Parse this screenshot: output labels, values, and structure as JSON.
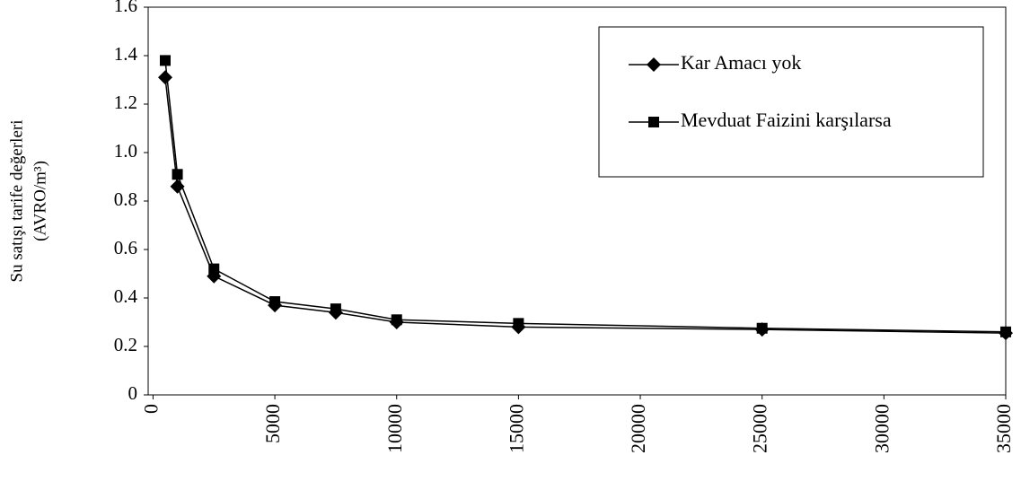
{
  "chart_data": {
    "type": "line",
    "ylabel": "Su satışı tarife değerleri",
    "ylabel_unit": "(AVRO/m³)",
    "x": [
      500,
      1000,
      2500,
      5000,
      7500,
      10000,
      15000,
      25000,
      35000
    ],
    "series": [
      {
        "name": "Kar Amacı yok",
        "color": "#000000",
        "marker": "diamond",
        "values": [
          1.31,
          0.86,
          0.49,
          0.37,
          0.34,
          0.3,
          0.28,
          0.27,
          0.255
        ]
      },
      {
        "name": "Mevduat Faizini karşılarsa",
        "color": "#000000",
        "marker": "square",
        "values": [
          1.38,
          0.91,
          0.52,
          0.385,
          0.355,
          0.31,
          0.295,
          0.275,
          0.26
        ]
      }
    ],
    "xlim": [
      -200,
      35000
    ],
    "xticks": [
      0,
      5000,
      10000,
      15000,
      20000,
      25000,
      30000,
      35000
    ],
    "ylim": [
      0,
      1.6
    ],
    "yticks": [
      0,
      0.2,
      0.4,
      0.6,
      0.8,
      {
        "value": 1,
        "label": "1.0"
      },
      1.2,
      1.4,
      1.6
    ],
    "grid": false,
    "legend": "upper right"
  }
}
